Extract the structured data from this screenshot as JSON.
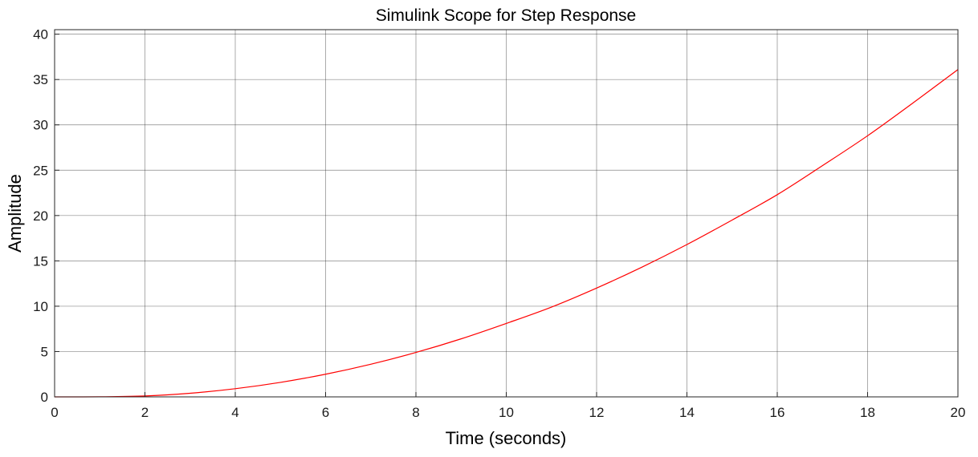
{
  "chart_data": {
    "type": "line",
    "title": "Simulink Scope for Step Response",
    "xlabel": "Time (seconds)",
    "ylabel": "Amplitude",
    "xlim": [
      0,
      20
    ],
    "ylim": [
      0,
      40.5
    ],
    "xticks": [
      0,
      2,
      4,
      6,
      8,
      10,
      12,
      14,
      16,
      18,
      20
    ],
    "yticks": [
      0,
      5,
      10,
      15,
      20,
      25,
      30,
      35,
      40
    ],
    "grid": true,
    "series": [
      {
        "color": "#ff0000",
        "x": [
          0,
          1,
          2,
          3,
          4,
          5,
          6,
          7,
          8,
          9,
          10,
          11,
          12,
          13,
          14,
          15,
          16,
          17,
          18,
          19,
          20
        ],
        "y": [
          0,
          0.01,
          0.1,
          0.4,
          0.9,
          1.6,
          2.5,
          3.6,
          4.9,
          6.4,
          8.1,
          9.9,
          12.0,
          14.3,
          16.8,
          19.5,
          22.3,
          25.5,
          28.8,
          32.4,
          36.1
        ]
      }
    ]
  }
}
